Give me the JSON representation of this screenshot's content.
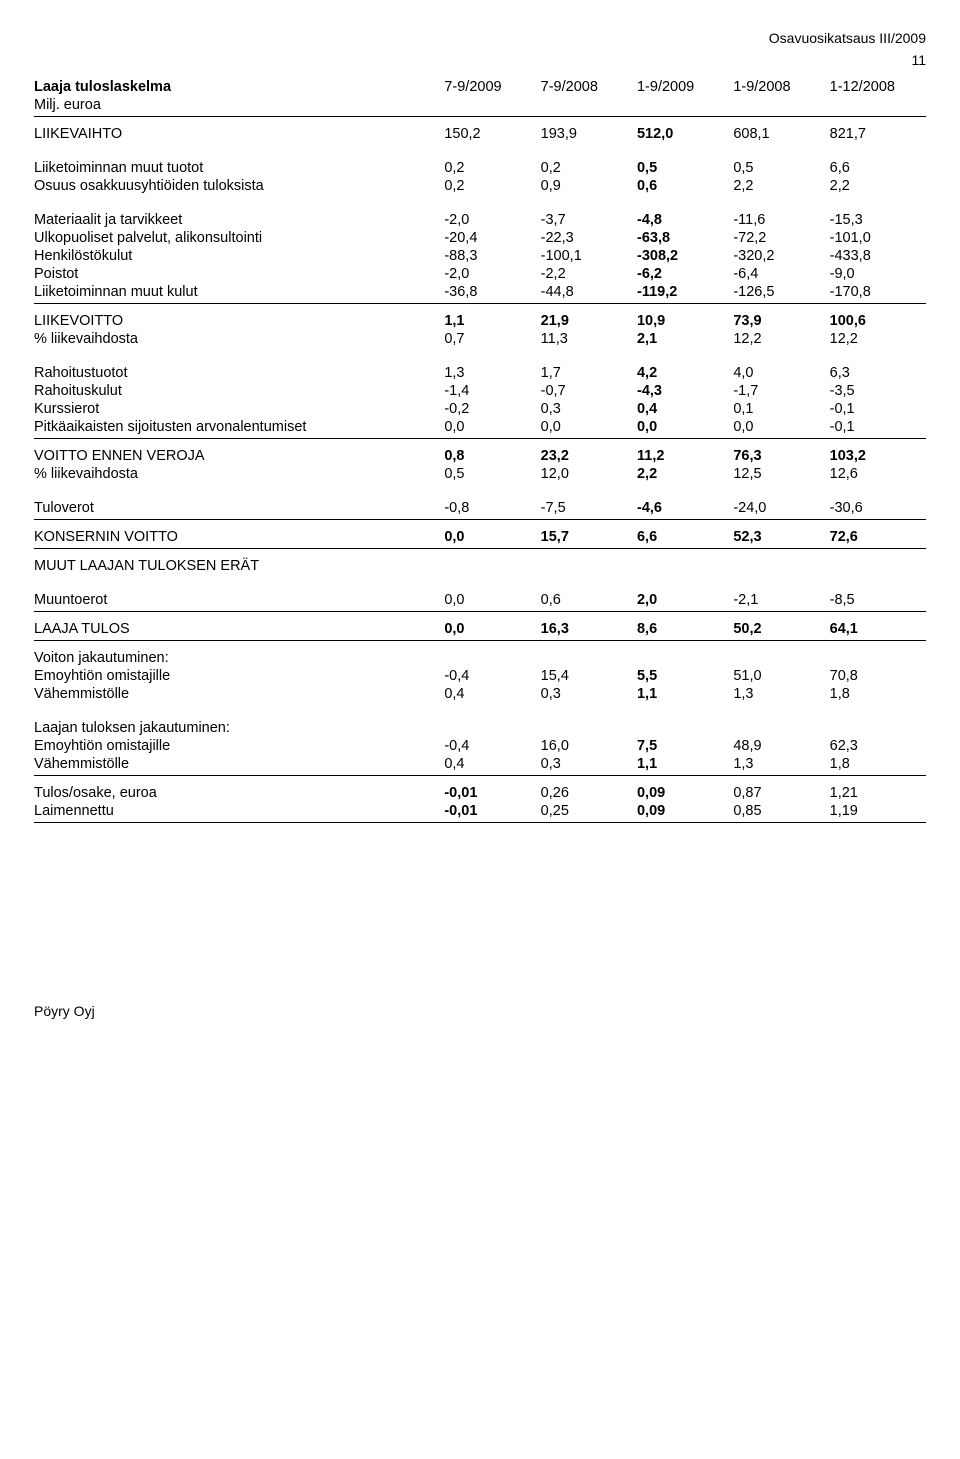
{
  "header": {
    "report_name": "Osavuosikatsaus III/2009",
    "page_number": "11"
  },
  "title_row": {
    "title": "Laaja tuloslaskelma",
    "subtitle": "Milj. euroa",
    "cols": [
      "7-9/2009",
      "7-9/2008",
      "1-9/2009",
      "1-9/2008",
      "1-12/2008"
    ]
  },
  "rows": {
    "liikevaihto": {
      "label": "LIIKEVAIHTO",
      "v": [
        "150,2",
        "193,9",
        "512,0",
        "608,1",
        "821,7"
      ]
    },
    "muut_tuotot": {
      "label": "Liiketoiminnan muut tuotot",
      "v": [
        "0,2",
        "0,2",
        "0,5",
        "0,5",
        "6,6"
      ]
    },
    "osuus": {
      "label": "Osuus osakkuusyhtiöiden tuloksista",
      "v": [
        "0,2",
        "0,9",
        "0,6",
        "2,2",
        "2,2"
      ]
    },
    "materiaalit": {
      "label": "Materiaalit ja tarvikkeet",
      "v": [
        "-2,0",
        "-3,7",
        "-4,8",
        "-11,6",
        "-15,3"
      ]
    },
    "ulkopuoliset": {
      "label": "Ulkopuoliset palvelut, alikonsultointi",
      "v": [
        "-20,4",
        "-22,3",
        "-63,8",
        "-72,2",
        "-101,0"
      ]
    },
    "henkilosto": {
      "label": "Henkilöstökulut",
      "v": [
        "-88,3",
        "-100,1",
        "-308,2",
        "-320,2",
        "-433,8"
      ]
    },
    "poistot": {
      "label": "Poistot",
      "v": [
        "-2,0",
        "-2,2",
        "-6,2",
        "-6,4",
        "-9,0"
      ]
    },
    "muut_kulut": {
      "label": "Liiketoiminnan muut kulut",
      "v": [
        "-36,8",
        "-44,8",
        "-119,2",
        "-126,5",
        "-170,8"
      ]
    },
    "liikevoitto": {
      "label": "LIIKEVOITTO",
      "v": [
        "1,1",
        "21,9",
        "10,9",
        "73,9",
        "100,6"
      ]
    },
    "pct1": {
      "label": "% liikevaihdosta",
      "v": [
        "0,7",
        "11,3",
        "2,1",
        "12,2",
        "12,2"
      ]
    },
    "rahtuotot": {
      "label": "Rahoitustuotot",
      "v": [
        "1,3",
        "1,7",
        "4,2",
        "4,0",
        "6,3"
      ]
    },
    "rahkulut": {
      "label": "Rahoituskulut",
      "v": [
        "-1,4",
        "-0,7",
        "-4,3",
        "-1,7",
        "-3,5"
      ]
    },
    "kurssierot": {
      "label": "Kurssierot",
      "v": [
        "-0,2",
        "0,3",
        "0,4",
        "0,1",
        "-0,1"
      ]
    },
    "pitkaaikaiset": {
      "label": "Pitkäaikaisten sijoitusten arvonalentumiset",
      "v": [
        "0,0",
        "0,0",
        "0,0",
        "0,0",
        "-0,1"
      ]
    },
    "voitto_ennen": {
      "label": "VOITTO ENNEN VEROJA",
      "v": [
        "0,8",
        "23,2",
        "11,2",
        "76,3",
        "103,2"
      ]
    },
    "pct2": {
      "label": "% liikevaihdosta",
      "v": [
        "0,5",
        "12,0",
        "2,2",
        "12,5",
        "12,6"
      ]
    },
    "tuloverot": {
      "label": "Tuloverot",
      "v": [
        "-0,8",
        "-7,5",
        "-4,6",
        "-24,0",
        "-30,6"
      ]
    },
    "konsernin": {
      "label": "KONSERNIN VOITTO",
      "v": [
        "0,0",
        "15,7",
        "6,6",
        "52,3",
        "72,6"
      ]
    },
    "muut_laaja_h": {
      "label": "MUUT LAAJAN TULOKSEN ERÄT"
    },
    "muuntoerot": {
      "label": "Muuntoerot",
      "v": [
        "0,0",
        "0,6",
        "2,0",
        "-2,1",
        "-8,5"
      ]
    },
    "laaja_tulos": {
      "label": "LAAJA TULOS",
      "v": [
        "0,0",
        "16,3",
        "8,6",
        "50,2",
        "64,1"
      ]
    },
    "voiton_jak_h": {
      "label": "Voiton jakautuminen:"
    },
    "emo1": {
      "label": "Emoyhtiön omistajille",
      "v": [
        "-0,4",
        "15,4",
        "5,5",
        "51,0",
        "70,8"
      ]
    },
    "vah1": {
      "label": "Vähemmistölle",
      "v": [
        "0,4",
        "0,3",
        "1,1",
        "1,3",
        "1,8"
      ]
    },
    "laajan_jak_h": {
      "label": "Laajan tuloksen jakautuminen:"
    },
    "emo2": {
      "label": "Emoyhtiön omistajille",
      "v": [
        "-0,4",
        "16,0",
        "7,5",
        "48,9",
        "62,3"
      ]
    },
    "vah2": {
      "label": "Vähemmistölle",
      "v": [
        "0,4",
        "0,3",
        "1,1",
        "1,3",
        "1,8"
      ]
    },
    "tulos_osake": {
      "label": "Tulos/osake, euroa",
      "v": [
        "-0,01",
        "0,26",
        "0,09",
        "0,87",
        "1,21"
      ]
    },
    "laimennettu": {
      "label": "Laimennettu",
      "v": [
        "-0,01",
        "0,25",
        "0,09",
        "0,85",
        "1,19"
      ]
    }
  },
  "footer": {
    "company": "Pöyry Oyj"
  }
}
